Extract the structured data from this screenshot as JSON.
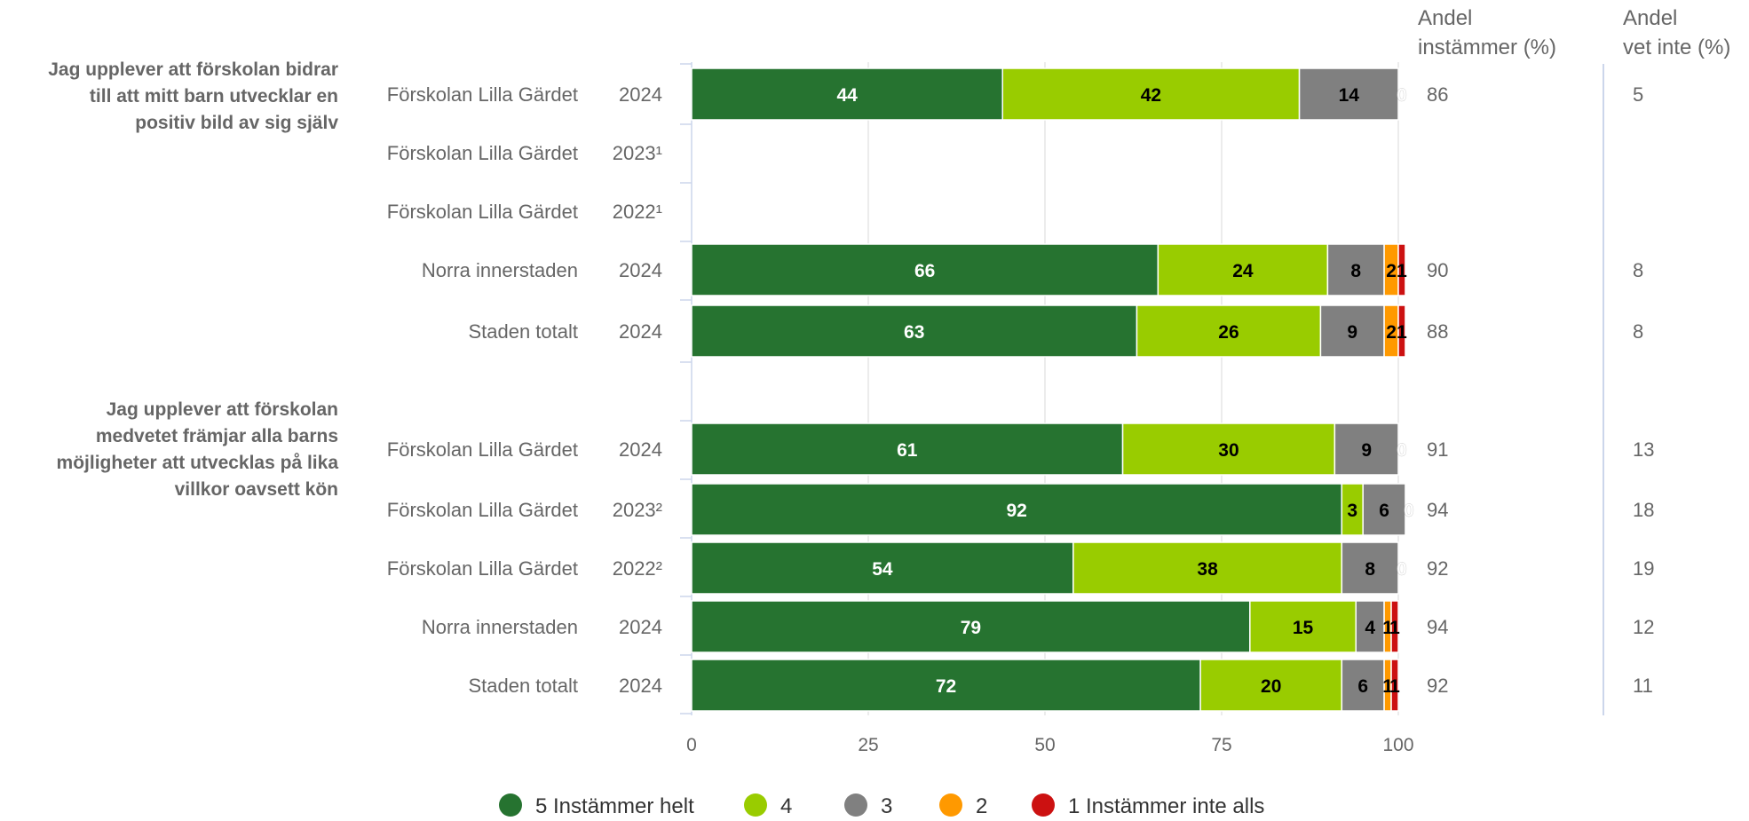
{
  "chart_data": {
    "type": "bar",
    "orientation": "horizontal",
    "stacked": true,
    "xlim": [
      0,
      100
    ],
    "xticks": [
      "0",
      "25",
      "50",
      "75",
      "100"
    ],
    "grid": true,
    "legend_position": "bottom",
    "column_headers": [
      {
        "line1": "Andel",
        "line2": "instämmer (%)"
      },
      {
        "line1": "Andel",
        "line2": "vet inte (%)"
      }
    ],
    "series": [
      {
        "name": "5 Instämmer helt",
        "color": "#267330"
      },
      {
        "name": "4",
        "color": "#99cc00"
      },
      {
        "name": "3",
        "color": "#808080"
      },
      {
        "name": "2",
        "color": "#ff9900"
      },
      {
        "name": "1 Instämmer inte alls",
        "color": "#cc1111"
      }
    ],
    "groups": [
      {
        "question": [
          "Jag upplever att förskolan bidrar",
          "till att mitt barn utvecklar en",
          "positiv bild av sig själv"
        ],
        "rows": [
          {
            "label": "Förskolan Lilla Gärdet",
            "year": "2024",
            "values": [
              44,
              42,
              14,
              0,
              0
            ],
            "labels": [
              "44",
              "42",
              "14",
              "0",
              ""
            ],
            "agree": "86",
            "dont_know": "5"
          },
          {
            "label": "Förskolan Lilla Gärdet",
            "year": "2023¹",
            "values": null,
            "labels": null,
            "agree": "",
            "dont_know": ""
          },
          {
            "label": "Förskolan Lilla Gärdet",
            "year": "2022¹",
            "values": null,
            "labels": null,
            "agree": "",
            "dont_know": ""
          },
          {
            "label": "Norra innerstaden",
            "year": "2024",
            "values": [
              66,
              24,
              8,
              2,
              1
            ],
            "labels": [
              "66",
              "24",
              "8",
              "2",
              "1"
            ],
            "agree": "90",
            "dont_know": "8"
          },
          {
            "label": "Staden totalt",
            "year": "2024",
            "values": [
              63,
              26,
              9,
              2,
              1
            ],
            "labels": [
              "63",
              "26",
              "9",
              "2",
              "1"
            ],
            "agree": "88",
            "dont_know": "8"
          }
        ]
      },
      {
        "question": [
          "Jag upplever att förskolan",
          "medvetet främjar alla barns",
          "möjligheter att utvecklas på lika",
          "villkor oavsett kön"
        ],
        "rows": [
          {
            "label": "Förskolan Lilla Gärdet",
            "year": "2024",
            "values": [
              61,
              30,
              9,
              0,
              0
            ],
            "labels": [
              "61",
              "30",
              "9",
              "0",
              ""
            ],
            "agree": "91",
            "dont_know": "13"
          },
          {
            "label": "Förskolan Lilla Gärdet",
            "year": "2023²",
            "values": [
              92,
              3,
              6,
              0,
              0
            ],
            "labels": [
              "92",
              "3",
              "6",
              "0",
              ""
            ],
            "agree": "94",
            "dont_know": "18"
          },
          {
            "label": "Förskolan Lilla Gärdet",
            "year": "2022²",
            "values": [
              54,
              38,
              8,
              0,
              0
            ],
            "labels": [
              "54",
              "38",
              "8",
              "0",
              ""
            ],
            "agree": "92",
            "dont_know": "19"
          },
          {
            "label": "Norra innerstaden",
            "year": "2024",
            "values": [
              79,
              15,
              4,
              1,
              1
            ],
            "labels": [
              "79",
              "15",
              "4",
              "1",
              "1"
            ],
            "agree": "94",
            "dont_know": "12"
          },
          {
            "label": "Staden totalt",
            "year": "2024",
            "values": [
              72,
              20,
              6,
              1,
              1
            ],
            "labels": [
              "72",
              "20",
              "6",
              "1",
              "1"
            ],
            "agree": "92",
            "dont_know": "11"
          }
        ]
      }
    ]
  }
}
